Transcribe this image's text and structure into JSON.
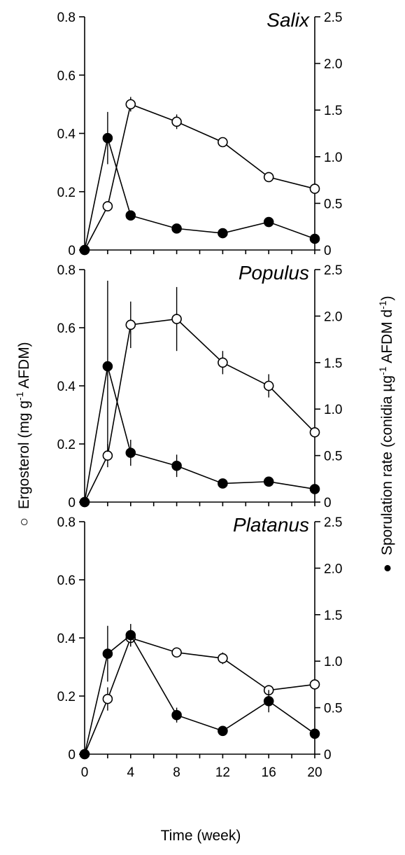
{
  "chart_data": [
    {
      "type": "line",
      "title": "Salix",
      "x": [
        0,
        2,
        4,
        8,
        12,
        16,
        20
      ],
      "xlim": [
        0,
        20
      ],
      "left_ylim": [
        0,
        0.8
      ],
      "right_ylim": [
        0,
        2.5
      ],
      "left_yticks": [
        "0",
        "0.2",
        "0.4",
        "0.6",
        "0.8"
      ],
      "right_yticks": [
        "0",
        "0.5",
        "1.0",
        "1.5",
        "2.0",
        "2.5"
      ],
      "series": [
        {
          "marker": "open-circle",
          "axis": "left",
          "values": [
            0,
            0.15,
            0.5,
            0.44,
            0.37,
            0.25,
            0.21
          ],
          "err": [
            0,
            0,
            0.025,
            0.025,
            0.015,
            0.01,
            0.01
          ]
        },
        {
          "marker": "filled-circle",
          "axis": "right",
          "values": [
            0,
            1.2,
            0.37,
            0.23,
            0.18,
            0.3,
            0.12
          ],
          "err": [
            0,
            0.28,
            0,
            0,
            0,
            0,
            0
          ]
        }
      ]
    },
    {
      "type": "line",
      "title": "Populus",
      "x": [
        0,
        2,
        4,
        8,
        12,
        16,
        20
      ],
      "xlim": [
        0,
        20
      ],
      "left_ylim": [
        0,
        0.8
      ],
      "right_ylim": [
        0,
        2.5
      ],
      "left_yticks": [
        "0",
        "0.2",
        "0.4",
        "0.6",
        "0.8"
      ],
      "right_yticks": [
        "0",
        "0.5",
        "1.0",
        "1.5",
        "2.0",
        "2.5"
      ],
      "series": [
        {
          "marker": "open-circle",
          "axis": "left",
          "values": [
            0,
            0.16,
            0.61,
            0.63,
            0.48,
            0.4,
            0.24
          ],
          "err": [
            0,
            0.04,
            0.08,
            0.11,
            0.04,
            0.04,
            0
          ]
        },
        {
          "marker": "filled-circle",
          "axis": "right",
          "values": [
            0,
            1.46,
            0.53,
            0.39,
            0.2,
            0.22,
            0.14
          ],
          "err": [
            0,
            0.92,
            0.14,
            0.12,
            0,
            0,
            0
          ]
        }
      ]
    },
    {
      "type": "line",
      "title": "Platanus",
      "x": [
        0,
        2,
        4,
        8,
        12,
        16,
        20
      ],
      "xlim": [
        0,
        20
      ],
      "left_ylim": [
        0,
        0.8
      ],
      "right_ylim": [
        0,
        2.5
      ],
      "left_yticks": [
        "0",
        "0.2",
        "0.4",
        "0.6",
        "0.8"
      ],
      "right_yticks": [
        "0",
        "0.5",
        "1.0",
        "1.5",
        "2.0",
        "2.5"
      ],
      "xticks": [
        "0",
        "4",
        "8",
        "12",
        "16",
        "20"
      ],
      "series": [
        {
          "marker": "open-circle",
          "axis": "left",
          "values": [
            0,
            0.19,
            0.4,
            0.35,
            0.33,
            0.22,
            0.24
          ],
          "err": [
            0,
            0.04,
            0.03,
            0.015,
            0.02,
            0.015,
            0
          ]
        },
        {
          "marker": "filled-circle",
          "axis": "right",
          "values": [
            0,
            1.08,
            1.28,
            0.42,
            0.25,
            0.57,
            0.22
          ],
          "err": [
            0,
            0.3,
            0.12,
            0.08,
            0,
            0.12,
            0
          ]
        }
      ]
    }
  ],
  "labels": {
    "xlabel": "Time (week)",
    "left_ylabel_symbol": "○",
    "left_ylabel_text": "Ergosterol (mg g",
    "left_ylabel_sup": "-1",
    "left_ylabel_tail": " AFDM)",
    "right_ylabel_symbol": "●",
    "right_ylabel_text": "Sporulation rate (conidia µg",
    "right_ylabel_sup": "-1",
    "right_ylabel_mid": " AFDM d",
    "right_ylabel_sup2": "-1",
    "right_ylabel_tail": ")"
  }
}
